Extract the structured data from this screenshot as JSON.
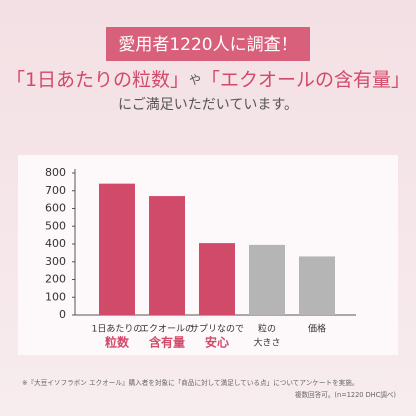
{
  "badge": "愛用者1220人に調査！",
  "heading": {
    "part1": "「1日あたりの粒数」",
    "connector": "や",
    "part2": "「エクオールの含有量」",
    "line2": "にご満足いただいています。"
  },
  "chart_data": {
    "type": "bar",
    "categories": [
      [
        "1日あたりの",
        "粒数"
      ],
      [
        "エクオールの",
        "含有量"
      ],
      [
        "サプリなので",
        "安心"
      ],
      [
        "粒の",
        "大きさ"
      ],
      [
        "価格"
      ]
    ],
    "values": [
      740,
      670,
      405,
      395,
      330
    ],
    "highlight": [
      true,
      true,
      true,
      false,
      false
    ],
    "colors": {
      "highlight": "#d24a6a",
      "other": "#b5b5b5"
    },
    "ylim": [
      0,
      800
    ],
    "yticks": [
      0,
      100,
      200,
      300,
      400,
      500,
      600,
      700,
      800
    ]
  },
  "footnote": [
    "※『大豆イソフラボン エクオール』購入者を対象に「商品に対して満足している点」についてアンケートを実施。",
    "複数回答可。(n=1220 DHC調べ)"
  ]
}
